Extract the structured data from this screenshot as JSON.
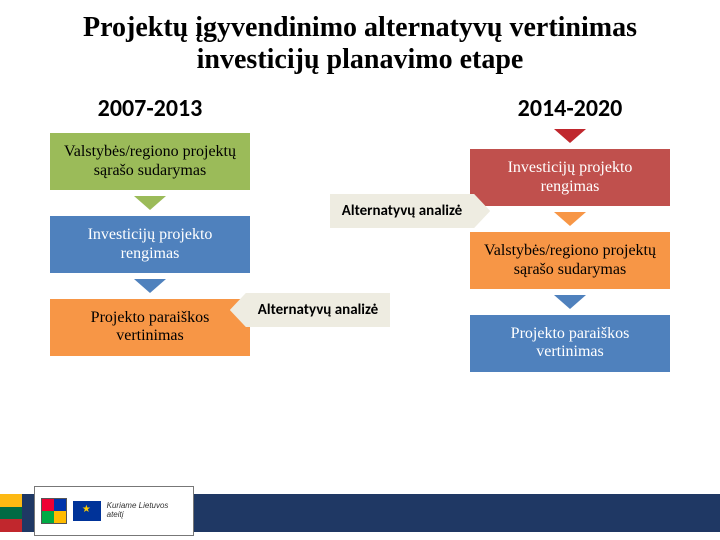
{
  "title": {
    "text": "Projektų įgyvendinimo alternatyvų vertinimas investicijų planavimo etape",
    "fontsize": 28,
    "color": "#000000"
  },
  "columns": {
    "left": {
      "header": "2007-2013",
      "header_fontsize": 24,
      "boxes": [
        {
          "text": "Valstybės/regiono projektų sąrašo sudarymas",
          "bg": "#9bbb59",
          "fg": "#000000",
          "arrow": "#9bbb59"
        },
        {
          "text": "Investicijų projekto rengimas",
          "bg": "#4f81bd",
          "fg": "#ffffff",
          "arrow": "#4f81bd"
        },
        {
          "text": "Projekto paraiškos vertinimas",
          "bg": "#f79646",
          "fg": "#000000",
          "arrow": null
        }
      ]
    },
    "right": {
      "header": "2014-2020",
      "header_fontsize": 24,
      "pre_arrow": "#c0272d",
      "boxes": [
        {
          "text": "Investicijų projekto rengimas",
          "bg": "#c0504d",
          "fg": "#ffffff",
          "arrow": "#f79646"
        },
        {
          "text": "Valstybės/regiono projektų sąrašo sudarymas",
          "bg": "#f79646",
          "fg": "#000000",
          "arrow": "#4f81bd"
        },
        {
          "text": "Projekto paraiškos vertinimas",
          "bg": "#4f81bd",
          "fg": "#ffffff",
          "arrow": null
        }
      ]
    }
  },
  "middle": {
    "top": {
      "text": "Alternatyvų analizė",
      "direction": "right",
      "bg": "#eeece1",
      "fontsize": 15
    },
    "bot": {
      "text": "Alternatyvų analizė",
      "direction": "left",
      "bg": "#eeece1",
      "fontsize": 15
    }
  },
  "box_fontsize": 16,
  "footer": {
    "bar_color": "#1f3864",
    "flag": [
      "#fdb913",
      "#006a44",
      "#c1272d"
    ],
    "logo_caption": "Kuriame Lietuvos ateitį"
  }
}
